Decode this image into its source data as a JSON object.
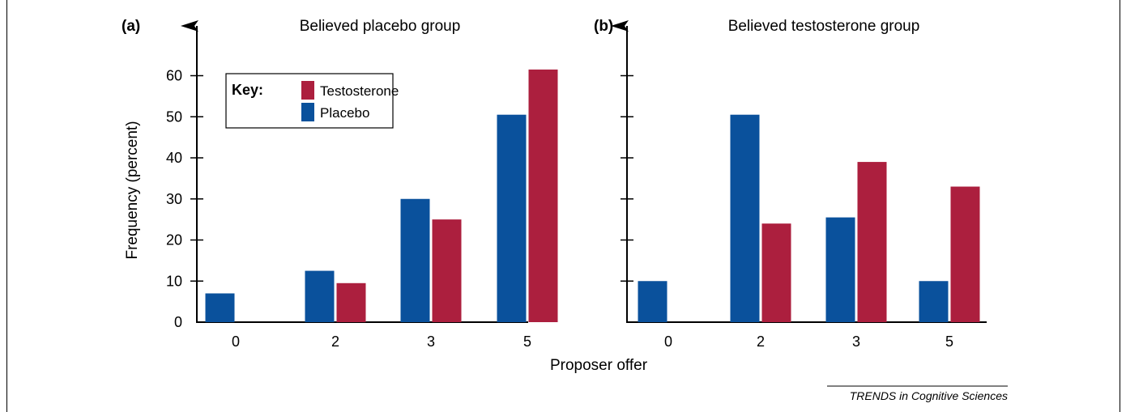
{
  "colors": {
    "placebo": "#0a519c",
    "testosterone": "#ac1f3e",
    "axis": "#000000"
  },
  "ylabel": "Frequency (percent)",
  "xlabel": "Proposer offer",
  "source": "TRENDS in Cognitive Sciences",
  "legend": {
    "key_label": "Key:",
    "items": [
      "Testosterone",
      "Placebo"
    ]
  },
  "chart_data": [
    {
      "type": "bar",
      "panel_label": "(a)",
      "title": "Believed placebo group",
      "categories": [
        "0",
        "2",
        "3",
        "5"
      ],
      "yticks": [
        "0",
        "10",
        "20",
        "30",
        "40",
        "50",
        "60"
      ],
      "ylim": [
        0,
        60
      ],
      "series": [
        {
          "name": "Placebo",
          "values": [
            7,
            12.5,
            30,
            50.5
          ]
        },
        {
          "name": "Testosterone",
          "values": [
            0,
            9.5,
            25,
            61.5
          ]
        }
      ]
    },
    {
      "type": "bar",
      "panel_label": "(b)",
      "title": "Believed testosterone group",
      "categories": [
        "0",
        "2",
        "3",
        "5"
      ],
      "yticks": [],
      "ylim": [
        0,
        60
      ],
      "series": [
        {
          "name": "Placebo",
          "values": [
            10,
            50.5,
            25.5,
            10
          ]
        },
        {
          "name": "Testosterone",
          "values": [
            0,
            24,
            39,
            33
          ]
        }
      ]
    }
  ]
}
